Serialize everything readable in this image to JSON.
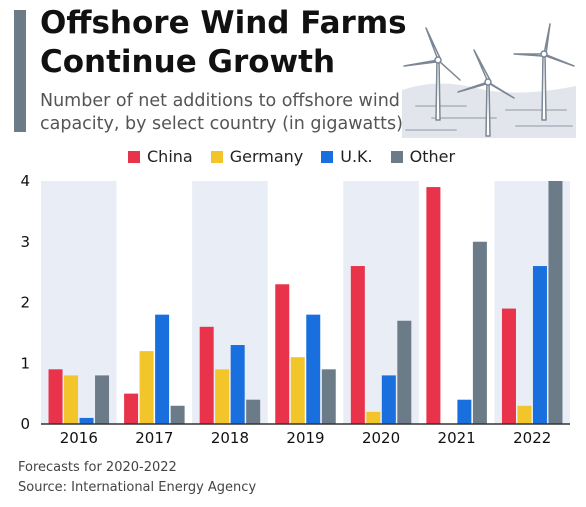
{
  "header": {
    "title_line1": "Offshore Wind Farms",
    "title_line2": "Continue Growth",
    "subtitle_line1": "Number of net additions to offshore wind",
    "subtitle_line2": "capacity, by select country (in gigawatts)"
  },
  "illustration": {
    "icon": "wind-turbines-icon"
  },
  "footer": {
    "note": "Forecasts for 2020-2022",
    "source": "Source: International Energy Agency"
  },
  "colors": {
    "China": "#e8334a",
    "Germany": "#f2c52b",
    "U.K.": "#1a6fde",
    "Other": "#6b7c88",
    "band": "#e9edf5",
    "accent": "#6b7c88"
  },
  "chart_data": {
    "type": "bar",
    "title": "Offshore Wind Farms Continue Growth",
    "subtitle": "Number of net additions to offshore wind capacity, by select country (in gigawatts)",
    "categories": [
      "2016",
      "2017",
      "2018",
      "2019",
      "2020",
      "2021",
      "2022"
    ],
    "series": [
      {
        "name": "China",
        "values": [
          0.9,
          0.5,
          1.6,
          2.3,
          2.6,
          3.9,
          1.9
        ]
      },
      {
        "name": "Germany",
        "values": [
          0.8,
          1.2,
          0.9,
          1.1,
          0.2,
          0,
          0.3
        ]
      },
      {
        "name": "U.K.",
        "values": [
          0.1,
          1.8,
          1.3,
          1.8,
          0.8,
          0.4,
          2.6
        ]
      },
      {
        "name": "Other",
        "values": [
          0.8,
          0.3,
          0.4,
          0.9,
          1.7,
          3.0,
          4.0
        ]
      }
    ],
    "yticks": [
      0,
      1,
      2,
      3,
      4
    ],
    "ylim": [
      0,
      4
    ],
    "xlabel": "",
    "ylabel": "",
    "legend_position": "top",
    "grid": false
  }
}
